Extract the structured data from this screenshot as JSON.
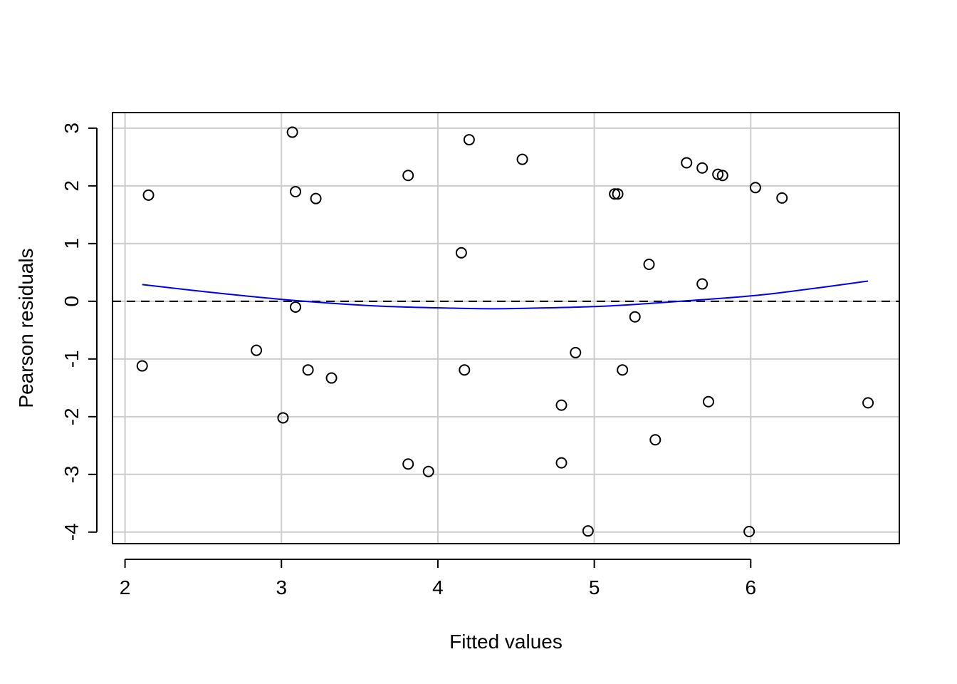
{
  "chart_data": {
    "type": "scatter",
    "title": "",
    "xlabel": "Fitted values",
    "ylabel": "Pearson residuals",
    "xlim": [
      1.92,
      6.95
    ],
    "ylim": [
      -4.2,
      3.27
    ],
    "x_ticks": [
      2,
      3,
      4,
      5,
      6
    ],
    "y_ticks": [
      -4,
      -3,
      -2,
      -1,
      0,
      1,
      2,
      3
    ],
    "x_tick_labels": [
      "2",
      "3",
      "4",
      "5",
      "6"
    ],
    "y_tick_labels": [
      "-4",
      "-3",
      "-2",
      "-1",
      "0",
      "1",
      "2",
      "3"
    ],
    "grid": true,
    "reference_line": {
      "y": 0,
      "style": "dashed",
      "color": "#000000"
    },
    "series": [
      {
        "type": "scatter",
        "marker": "open-circle",
        "color": "#000000",
        "points": [
          {
            "x": 2.11,
            "y": -1.12
          },
          {
            "x": 2.15,
            "y": 1.84
          },
          {
            "x": 2.84,
            "y": -0.85
          },
          {
            "x": 3.01,
            "y": -2.02
          },
          {
            "x": 3.07,
            "y": 2.93
          },
          {
            "x": 3.09,
            "y": 1.9
          },
          {
            "x": 3.09,
            "y": -0.1
          },
          {
            "x": 3.17,
            "y": -1.19
          },
          {
            "x": 3.22,
            "y": 1.78
          },
          {
            "x": 3.32,
            "y": -1.33
          },
          {
            "x": 3.81,
            "y": 2.18
          },
          {
            "x": 3.81,
            "y": -2.82
          },
          {
            "x": 3.94,
            "y": -2.95
          },
          {
            "x": 4.15,
            "y": 0.84
          },
          {
            "x": 4.17,
            "y": -1.19
          },
          {
            "x": 4.2,
            "y": 2.8
          },
          {
            "x": 4.54,
            "y": 2.46
          },
          {
            "x": 4.79,
            "y": -1.8
          },
          {
            "x": 4.79,
            "y": -2.8
          },
          {
            "x": 4.88,
            "y": -0.89
          },
          {
            "x": 4.96,
            "y": -3.98
          },
          {
            "x": 5.13,
            "y": 1.86
          },
          {
            "x": 5.15,
            "y": 1.86
          },
          {
            "x": 5.18,
            "y": -1.19
          },
          {
            "x": 5.26,
            "y": -0.27
          },
          {
            "x": 5.35,
            "y": 0.64
          },
          {
            "x": 5.39,
            "y": -2.4
          },
          {
            "x": 5.59,
            "y": 2.4
          },
          {
            "x": 5.69,
            "y": 2.31
          },
          {
            "x": 5.69,
            "y": 0.3
          },
          {
            "x": 5.73,
            "y": -1.74
          },
          {
            "x": 5.79,
            "y": 2.2
          },
          {
            "x": 5.82,
            "y": 2.18
          },
          {
            "x": 5.99,
            "y": -3.99
          },
          {
            "x": 6.03,
            "y": 1.97
          },
          {
            "x": 6.2,
            "y": 1.79
          },
          {
            "x": 6.75,
            "y": -1.76
          }
        ]
      },
      {
        "type": "line",
        "smooth": true,
        "color": "#0000ee",
        "x": [
          2.11,
          2.6,
          3.1,
          3.6,
          4.1,
          4.35,
          4.6,
          5.1,
          5.6,
          6.1,
          6.75
        ],
        "y": [
          0.29,
          0.14,
          0.01,
          -0.08,
          -0.12,
          -0.13,
          -0.12,
          -0.08,
          0.01,
          0.12,
          0.35
        ]
      }
    ]
  }
}
